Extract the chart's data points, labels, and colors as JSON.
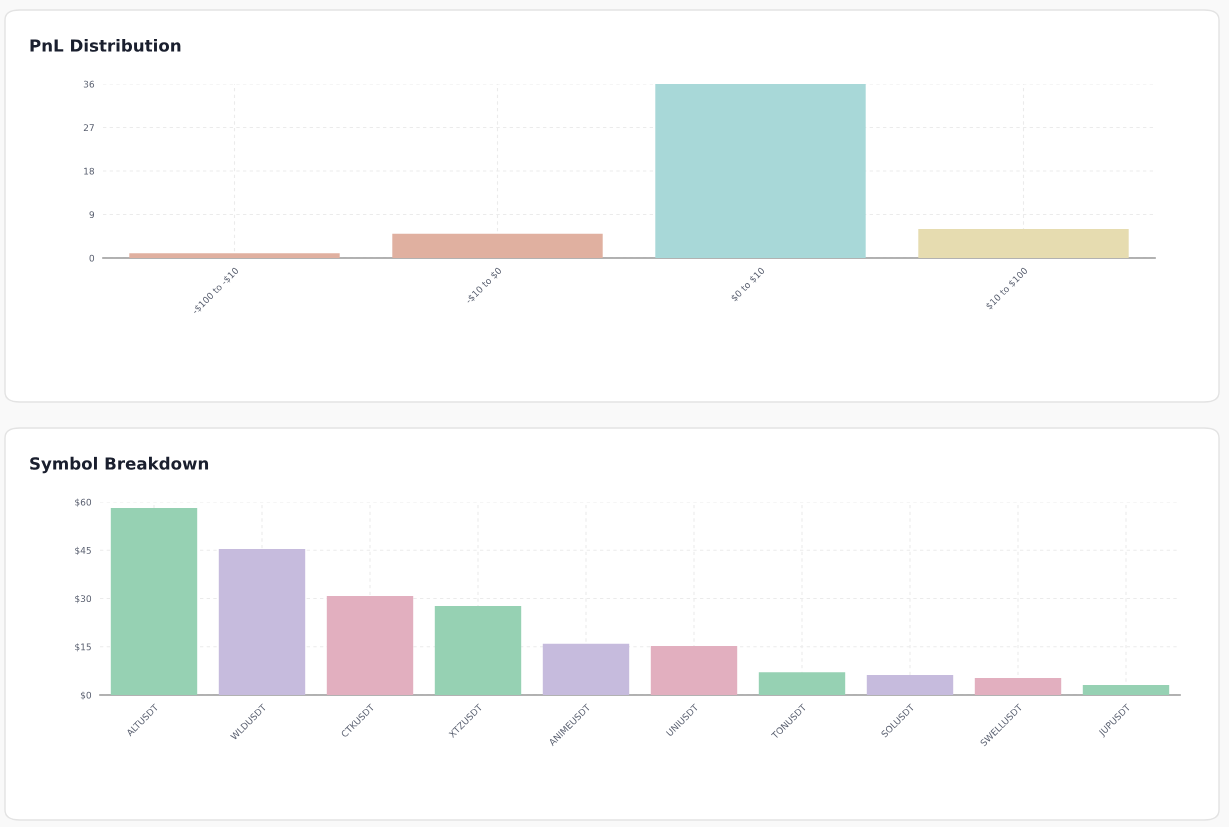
{
  "chart_data": [
    {
      "type": "bar",
      "title": "PnL Distribution",
      "categories": [
        "-$100 to -$10",
        "-$10 to $0",
        "$0 to $10",
        "$10 to $100"
      ],
      "values": [
        1,
        5,
        36,
        6
      ],
      "colors": [
        "#e0b0a0",
        "#e0b0a0",
        "#a8d8d8",
        "#e6dcb0"
      ],
      "ylim": [
        0,
        36
      ],
      "yticks": [
        0,
        9,
        18,
        27,
        36
      ],
      "grid": true
    },
    {
      "type": "bar",
      "title": "Symbol Breakdown",
      "categories": [
        "ALTUSDT",
        "WLDUSDT",
        "CTKUSDT",
        "XTZUSDT",
        "ANIMEUSDT",
        "UNIUSDT",
        "TONUSDT",
        "SOLUSDT",
        "SWELLUSDT",
        "JUPUSDT"
      ],
      "values": [
        58.1,
        45.4,
        30.8,
        27.7,
        15.9,
        15.2,
        7.1,
        6.2,
        5.3,
        3.1
      ],
      "colors": [
        "#96d1b3",
        "#c6bbdd",
        "#e2afbf",
        "#96d1b3",
        "#c6bbdd",
        "#e2afbf",
        "#96d1b3",
        "#c6bbdd",
        "#e2afbf",
        "#96d1b3"
      ],
      "ylim": [
        0,
        60
      ],
      "yticks": [
        {
          "value": 0,
          "label": "$0"
        },
        {
          "value": 15,
          "label": "$15"
        },
        {
          "value": 30,
          "label": "$30"
        },
        {
          "value": 45,
          "label": "$45"
        },
        {
          "value": 60,
          "label": "$60"
        }
      ],
      "grid": true
    }
  ]
}
